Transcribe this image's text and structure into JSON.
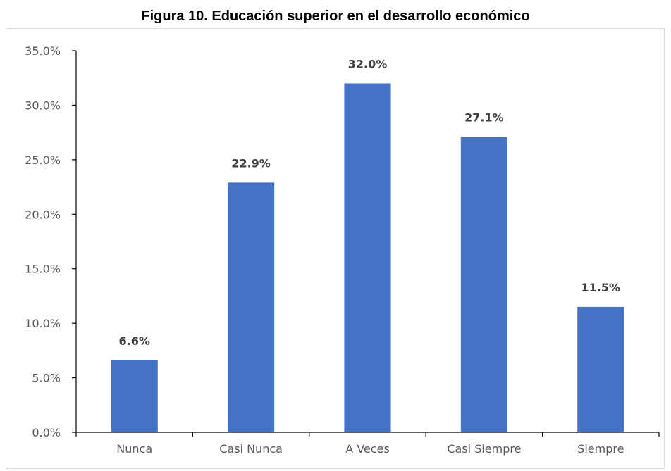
{
  "title": "Figura 10. Educación superior en el desarrollo económico",
  "colors": {
    "bar": "#4472C4",
    "axis": "#000000",
    "tick_text": "#595959",
    "data_label_text": "#404040",
    "frame": "#d9d9d9"
  },
  "chart_data": {
    "type": "bar",
    "title": "Figura 10. Educación superior en el desarrollo económico",
    "categories": [
      "Nunca",
      "Casi Nunca",
      "A Veces",
      "Casi Siempre",
      "Siempre"
    ],
    "values": [
      6.6,
      22.9,
      32.0,
      27.1,
      11.5
    ],
    "data_labels": [
      "6.6%",
      "22.9%",
      "32.0%",
      "27.1%",
      "11.5%"
    ],
    "xlabel": "",
    "ylabel": "",
    "ylim": [
      0,
      35
    ],
    "yticks": [
      0,
      5,
      10,
      15,
      20,
      25,
      30,
      35
    ],
    "ytick_labels": [
      "0.0%",
      "5.0%",
      "10.0%",
      "15.0%",
      "20.0%",
      "25.0%",
      "30.0%",
      "35.0%"
    ],
    "grid": false,
    "legend": "none"
  }
}
